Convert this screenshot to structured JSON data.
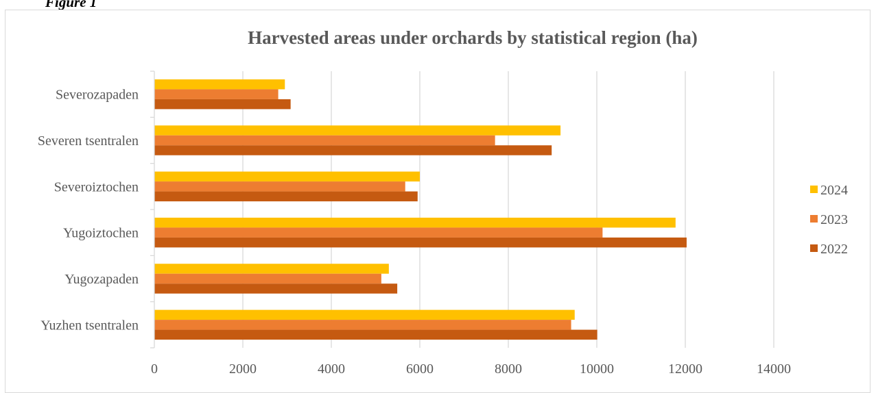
{
  "figure_label": "Figure 1",
  "chart_data": {
    "type": "bar",
    "orientation": "horizontal",
    "title": "Harvested areas under orchards by statistical region (ha)",
    "categories": [
      "Severozapaden",
      "Severen tsentralen",
      "Severoiztochen",
      "Yugoiztochen",
      "Yugozapaden",
      "Yuzhen tsentralen"
    ],
    "series": [
      {
        "name": "2024",
        "color": "#FFC000",
        "values": [
          2950,
          9180,
          6000,
          11780,
          5300,
          9500
        ]
      },
      {
        "name": "2023",
        "color": "#ED7D31",
        "values": [
          2800,
          7700,
          5670,
          10130,
          5130,
          9420
        ]
      },
      {
        "name": "2022",
        "color": "#C55A11",
        "values": [
          3080,
          8980,
          5950,
          12030,
          5490,
          10010
        ]
      }
    ],
    "xlim": [
      0,
      14000
    ],
    "xticks": [
      "0",
      "2000",
      "4000",
      "6000",
      "8000",
      "10000",
      "12000",
      "14000"
    ],
    "grid": true,
    "legend_position": "right"
  }
}
